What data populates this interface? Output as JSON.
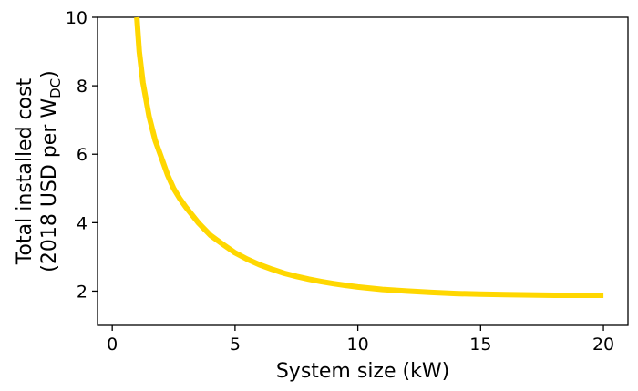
{
  "chart_data": {
    "type": "line",
    "title": "",
    "xlabel": "System size (kW)",
    "ylabel_line1": "Total installed cost",
    "ylabel_line2_prefix": "(2018 USD per W",
    "ylabel_subscript": "DC",
    "ylabel_line2_suffix": ")",
    "xlim": [
      -0.6,
      21
    ],
    "ylim": [
      1,
      10
    ],
    "xticks": [
      0,
      5,
      10,
      15,
      20
    ],
    "yticks": [
      2,
      4,
      6,
      8,
      10
    ],
    "grid": false,
    "line_color": "#FFD700",
    "series": [
      {
        "x": [
          1.0,
          1.1,
          1.25,
          1.5,
          1.75,
          2.0,
          2.25,
          2.5,
          2.75,
          3.0,
          3.5,
          4.0,
          4.5,
          5.0,
          5.5,
          6.0,
          6.5,
          7.0,
          7.5,
          8.0,
          8.5,
          9.0,
          9.5,
          10.0,
          11.0,
          12.0,
          13.0,
          14.0,
          15.0,
          16.0,
          17.0,
          18.0,
          19.0,
          20.0
        ],
        "y": [
          10.0,
          9.0,
          8.1,
          7.1,
          6.4,
          5.9,
          5.4,
          5.0,
          4.7,
          4.45,
          4.0,
          3.63,
          3.37,
          3.12,
          2.93,
          2.77,
          2.64,
          2.52,
          2.43,
          2.35,
          2.28,
          2.22,
          2.17,
          2.12,
          2.05,
          2.0,
          1.96,
          1.93,
          1.91,
          1.9,
          1.89,
          1.88,
          1.88,
          1.88
        ]
      }
    ]
  }
}
